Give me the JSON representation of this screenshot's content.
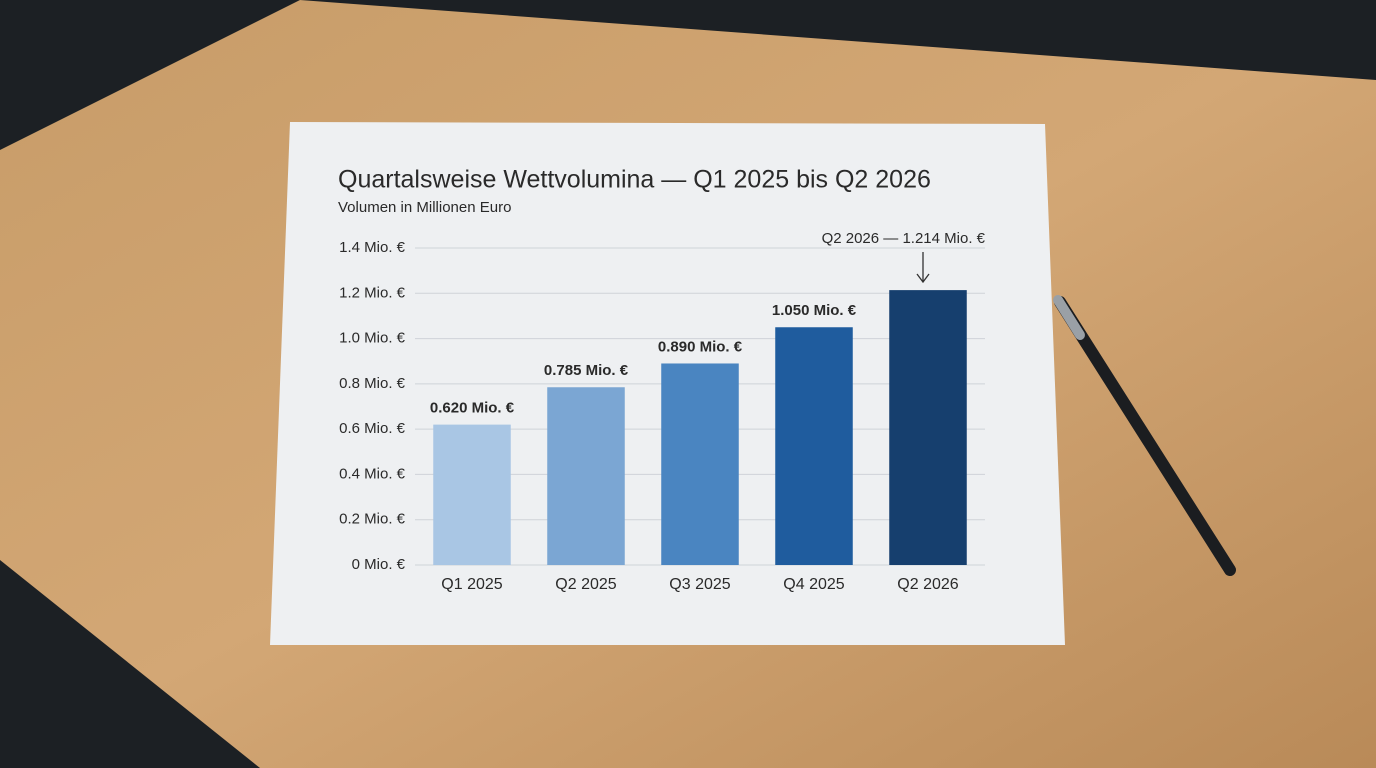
{
  "chart_data": {
    "type": "bar",
    "title": "Quartalsweise Wettvolumina — Q1 2025 bis Q2 2026",
    "subtitle": "Volumen in Millionen Euro",
    "categories": [
      "Q1 2025",
      "Q2 2025",
      "Q3 2025",
      "Q4 2025",
      "Q2 2026"
    ],
    "values": [
      0.62,
      0.785,
      0.89,
      1.05,
      1.214
    ],
    "value_labels": [
      "0.620 Mio. €",
      "0.785 Mio. €",
      "0.890 Mio. €",
      "1.050 Mio. €",
      "1.214 Mio. €"
    ],
    "colors": [
      "#a9c6e4",
      "#7ba6d3",
      "#4a85c1",
      "#1f5c9e",
      "#163f6e"
    ],
    "annotation": "Q2 2026 — 1.214 Mio. €",
    "ylim": [
      0,
      1.4
    ],
    "yticks": [
      {
        "value": 0,
        "label": "0 Mio. €"
      },
      {
        "value": 0.2,
        "label": "0.2 Mio. €"
      },
      {
        "value": 0.4,
        "label": "0.4 Mio. €"
      },
      {
        "value": 0.6,
        "label": "0.6 Mio. €"
      },
      {
        "value": 0.8,
        "label": "0.8 Mio. €"
      },
      {
        "value": 1.0,
        "label": "1.0 Mio. €"
      },
      {
        "value": 1.2,
        "label": "1.2 Mio. €"
      },
      {
        "value": 1.4,
        "label": "1.4 Mio. €"
      }
    ],
    "grid": true
  }
}
